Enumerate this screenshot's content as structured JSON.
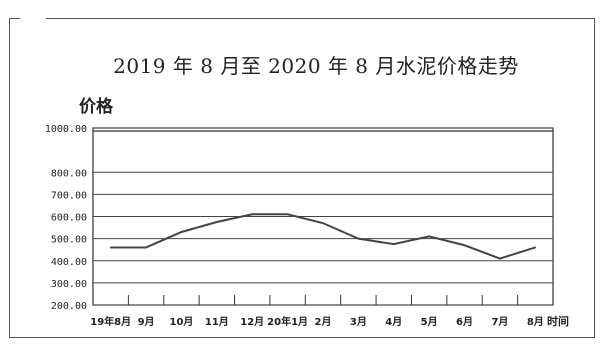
{
  "chart_data": {
    "type": "line",
    "title": "2019 年 8 月至 2020 年 8 月水泥价格走势",
    "ylabel": "价格",
    "xlabel": "时间",
    "ylim": [
      200,
      1000
    ],
    "yticks": [
      "1000.00",
      "800.00",
      "700.00",
      "600.00",
      "500.00",
      "400.00",
      "300.00",
      "200.00"
    ],
    "ytick_values": [
      1000,
      800,
      700,
      600,
      500,
      400,
      300,
      200
    ],
    "categories": [
      "19年8月",
      "9月",
      "10月",
      "11月",
      "12月",
      "20年1月",
      "2月",
      "3月",
      "4月",
      "5月",
      "6月",
      "7月",
      "8月"
    ],
    "series": [
      {
        "values": [
          460,
          460,
          530,
          575,
          610,
          610,
          570,
          500,
          475,
          510,
          470,
          410,
          460
        ]
      }
    ],
    "grid": true,
    "line_color": "#444444"
  }
}
